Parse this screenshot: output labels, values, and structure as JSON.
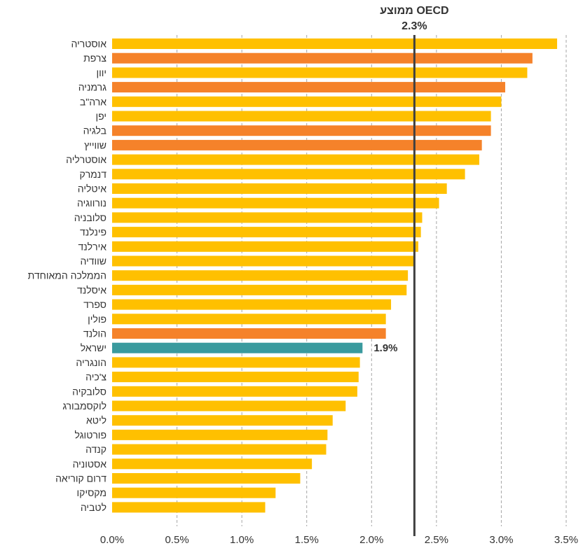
{
  "chart_data": {
    "type": "bar",
    "orientation": "horizontal",
    "categories": [
      "אוסטריה",
      "צרפת",
      "יוון",
      "גרמניה",
      "ארה\"ב",
      "יפן",
      "בלגיה",
      "שווייץ",
      "אוסטרליה",
      "דנמרק",
      "איטליה",
      "נורווגיה",
      "סלובניה",
      "פינלנד",
      "אירלנד",
      "שוודיה",
      "הממלכה המאוחדת",
      "איסלנד",
      "ספרד",
      "פולין",
      "הולנד",
      "ישראל",
      "הונגריה",
      "צ'כיה",
      "סלובקיה",
      "לוקסמבורג",
      "ליטא",
      "פורטוגל",
      "קנדה",
      "אסטוניה",
      "דרום קוריאה",
      "מקסיקו",
      "לטביה"
    ],
    "values": [
      3.43,
      3.24,
      3.2,
      3.03,
      3.0,
      2.92,
      2.92,
      2.85,
      2.83,
      2.72,
      2.58,
      2.52,
      2.39,
      2.38,
      2.36,
      2.33,
      2.28,
      2.27,
      2.15,
      2.11,
      2.11,
      1.93,
      1.91,
      1.9,
      1.89,
      1.8,
      1.7,
      1.66,
      1.65,
      1.54,
      1.45,
      1.26,
      1.18
    ],
    "highlight": [
      "yellow",
      "orange",
      "yellow",
      "orange",
      "yellow",
      "yellow",
      "orange",
      "orange",
      "yellow",
      "yellow",
      "yellow",
      "yellow",
      "yellow",
      "yellow",
      "yellow",
      "yellow",
      "yellow",
      "yellow",
      "yellow",
      "yellow",
      "orange",
      "teal",
      "yellow",
      "yellow",
      "yellow",
      "yellow",
      "yellow",
      "yellow",
      "yellow",
      "yellow",
      "yellow",
      "yellow",
      "yellow"
    ],
    "colors": {
      "yellow": "#FFC000",
      "orange": "#F5822A",
      "teal": "#3A9A9E",
      "reference_line": "#404040",
      "grid": "#A6A6A6"
    },
    "xlim": [
      0,
      3.5
    ],
    "xticks": [
      "0.0%",
      "0.5%",
      "1.0%",
      "1.5%",
      "2.0%",
      "2.5%",
      "3.0%",
      "3.5%"
    ],
    "reference": {
      "title": "ממוצע OECD",
      "value_label": "2.3%",
      "value": 2.33
    },
    "data_labels": [
      {
        "category": "ישראל",
        "text": "1.9%"
      }
    ],
    "grid": "vertical dashed"
  }
}
